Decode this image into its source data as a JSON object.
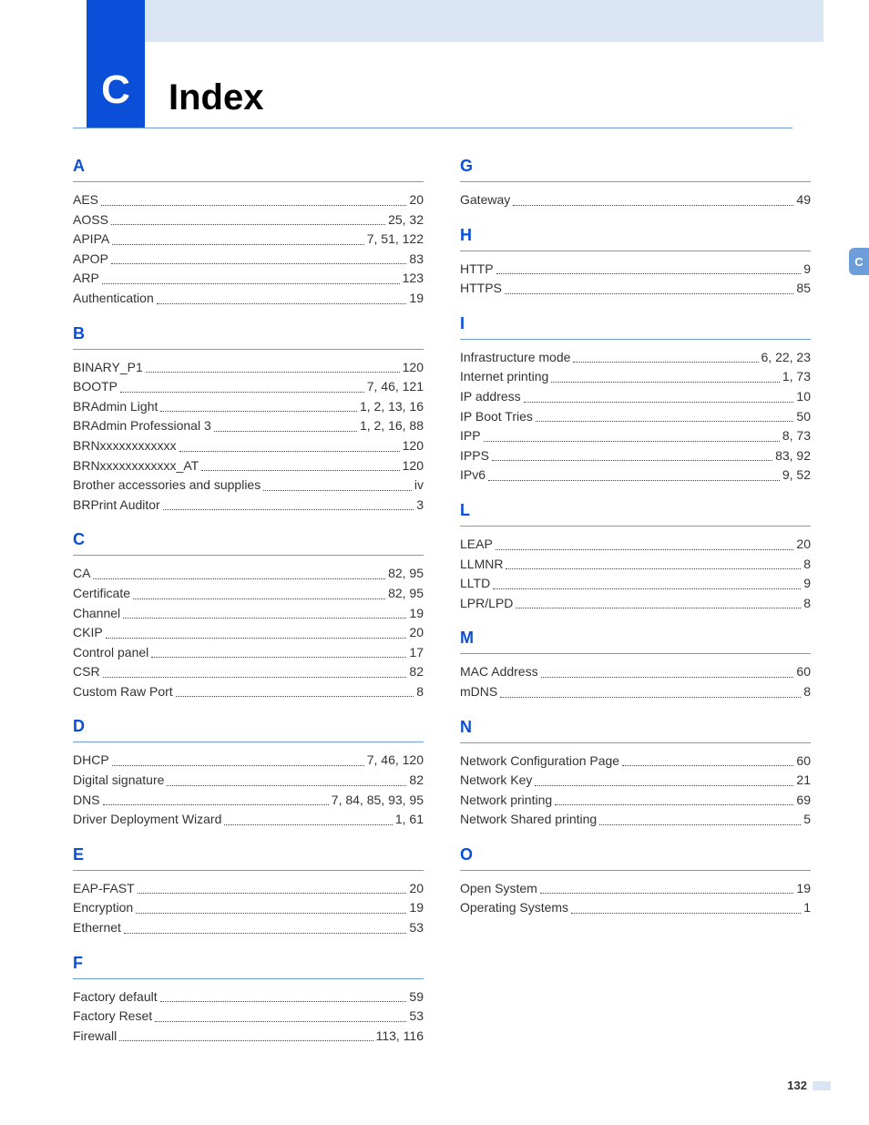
{
  "header": {
    "section_letter": "C",
    "title": "Index",
    "tab_letter": "C",
    "page_number": "132"
  },
  "colors": {
    "accent_blue": "#0b4fd8",
    "light_blue": "#dbe6f5",
    "rule_blue": "#6e9eda",
    "text": "#333333"
  },
  "left_sections": [
    {
      "letter": "A",
      "entries": [
        {
          "term": "AES",
          "pages": "20"
        },
        {
          "term": "AOSS",
          "pages": "25, 32"
        },
        {
          "term": "APIPA",
          "pages": "7, 51, 122"
        },
        {
          "term": "APOP",
          "pages": "83"
        },
        {
          "term": "ARP",
          "pages": "123"
        },
        {
          "term": "Authentication",
          "pages": "19"
        }
      ]
    },
    {
      "letter": "B",
      "entries": [
        {
          "term": "BINARY_P1",
          "pages": "120"
        },
        {
          "term": "BOOTP",
          "pages": "7, 46, 121"
        },
        {
          "term": "BRAdmin Light",
          "pages": "1, 2, 13, 16"
        },
        {
          "term": "BRAdmin Professional 3",
          "pages": "1, 2, 16, 88"
        },
        {
          "term": "BRNxxxxxxxxxxxx",
          "pages": "120"
        },
        {
          "term": "BRNxxxxxxxxxxxx_AT",
          "pages": "120"
        },
        {
          "term": "Brother accessories and supplies",
          "pages": "iv"
        },
        {
          "term": "BRPrint Auditor",
          "pages": "3"
        }
      ]
    },
    {
      "letter": "C",
      "entries": [
        {
          "term": "CA",
          "pages": "82, 95"
        },
        {
          "term": "Certificate",
          "pages": "82, 95"
        },
        {
          "term": "Channel",
          "pages": "19"
        },
        {
          "term": "CKIP",
          "pages": "20"
        },
        {
          "term": "Control panel",
          "pages": "17"
        },
        {
          "term": "CSR",
          "pages": "82"
        },
        {
          "term": "Custom Raw Port",
          "pages": "8"
        }
      ]
    },
    {
      "letter": "D",
      "entries": [
        {
          "term": "DHCP",
          "pages": "7, 46, 120"
        },
        {
          "term": "Digital signature",
          "pages": "82"
        },
        {
          "term": "DNS",
          "pages": "7, 84, 85, 93, 95"
        },
        {
          "term": "Driver Deployment Wizard",
          "pages": "1, 61"
        }
      ]
    },
    {
      "letter": "E",
      "entries": [
        {
          "term": "EAP-FAST",
          "pages": "20"
        },
        {
          "term": "Encryption",
          "pages": "19"
        },
        {
          "term": "Ethernet",
          "pages": "53"
        }
      ]
    },
    {
      "letter": "F",
      "entries": [
        {
          "term": "Factory default",
          "pages": "59"
        },
        {
          "term": "Factory Reset",
          "pages": "53"
        },
        {
          "term": "Firewall",
          "pages": "113, 116"
        }
      ]
    }
  ],
  "right_sections": [
    {
      "letter": "G",
      "entries": [
        {
          "term": "Gateway",
          "pages": "49"
        }
      ]
    },
    {
      "letter": "H",
      "entries": [
        {
          "term": "HTTP",
          "pages": "9"
        },
        {
          "term": "HTTPS",
          "pages": "85"
        }
      ]
    },
    {
      "letter": "I",
      "entries": [
        {
          "term": "Infrastructure mode",
          "pages": "6, 22, 23"
        },
        {
          "term": "Internet printing",
          "pages": "1, 73"
        },
        {
          "term": "IP address",
          "pages": "10"
        },
        {
          "term": "IP Boot Tries",
          "pages": "50"
        },
        {
          "term": "IPP",
          "pages": "8, 73"
        },
        {
          "term": "IPPS",
          "pages": "83, 92"
        },
        {
          "term": "IPv6",
          "pages": "9, 52"
        }
      ]
    },
    {
      "letter": "L",
      "entries": [
        {
          "term": "LEAP",
          "pages": "20"
        },
        {
          "term": "LLMNR",
          "pages": "8"
        },
        {
          "term": "LLTD",
          "pages": "9"
        },
        {
          "term": "LPR/LPD",
          "pages": "8"
        }
      ]
    },
    {
      "letter": "M",
      "entries": [
        {
          "term": "MAC Address",
          "pages": "60"
        },
        {
          "term": "mDNS",
          "pages": "8"
        }
      ]
    },
    {
      "letter": "N",
      "entries": [
        {
          "term": "Network Configuration Page",
          "pages": "60"
        },
        {
          "term": "Network Key",
          "pages": "21"
        },
        {
          "term": "Network printing",
          "pages": "69"
        },
        {
          "term": "Network Shared printing",
          "pages": "5"
        }
      ]
    },
    {
      "letter": "O",
      "entries": [
        {
          "term": "Open System",
          "pages": "19"
        },
        {
          "term": "Operating Systems",
          "pages": "1"
        }
      ]
    }
  ]
}
